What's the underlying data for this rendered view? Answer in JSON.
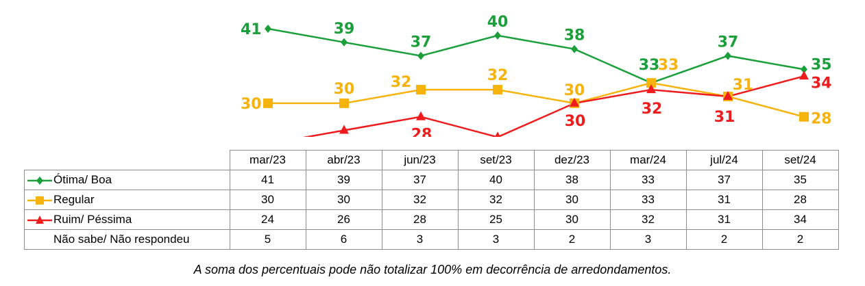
{
  "chart_data": {
    "type": "line",
    "categories": [
      "mar/23",
      "abr/23",
      "jun/23",
      "set/23",
      "dez/23",
      "mar/24",
      "jul/24",
      "set/24"
    ],
    "ylim": [
      20,
      45
    ],
    "grid": false,
    "series": [
      {
        "name": "Ótima/ Boa",
        "color": "#1a9f3a",
        "marker": "diamond",
        "values": [
          41,
          39,
          37,
          40,
          38,
          33,
          37,
          35
        ]
      },
      {
        "name": "Regular",
        "color": "#f5b30c",
        "marker": "square",
        "values": [
          30,
          30,
          32,
          32,
          30,
          33,
          31,
          28
        ]
      },
      {
        "name": "Ruim/ Péssima",
        "color": "#ee1c1c",
        "marker": "triangle",
        "values": [
          24,
          26,
          28,
          25,
          30,
          32,
          31,
          34
        ]
      }
    ],
    "table": {
      "extra_row": {
        "name": "Não sabe/ Não respondeu",
        "values": [
          5,
          6,
          3,
          3,
          2,
          3,
          2,
          2
        ]
      }
    }
  },
  "footnote": "A soma dos percentuais pode não totalizar 100% em decorrência de arredondamentos."
}
